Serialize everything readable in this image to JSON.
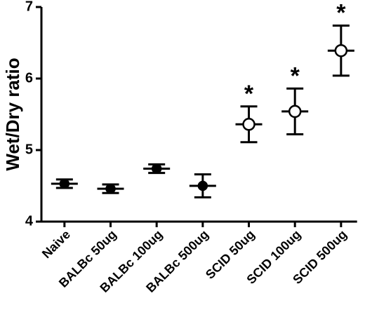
{
  "chart_data": {
    "type": "scatter",
    "y_label": "Wet/Dry ratio",
    "categories": [
      "Naive",
      "BALBc 50ug",
      "BALBc 100ug",
      "BALBc 500ug",
      "SCID 50ug",
      "SCID 100ug",
      "SCID 500ug"
    ],
    "values": [
      4.53,
      4.46,
      4.74,
      4.5,
      5.36,
      5.54,
      6.39
    ],
    "errors": [
      0.06,
      0.06,
      0.06,
      0.16,
      0.25,
      0.32,
      0.35
    ],
    "marker_fills": [
      "#000000",
      "#000000",
      "#000000",
      "#000000",
      "#ffffff",
      "#ffffff",
      "#ffffff"
    ],
    "significance": [
      null,
      null,
      null,
      null,
      "*",
      "*",
      "*"
    ],
    "color": "#000000",
    "ylim": [
      4,
      7
    ],
    "yticks": [
      4,
      5,
      6,
      7
    ],
    "grid": false
  }
}
